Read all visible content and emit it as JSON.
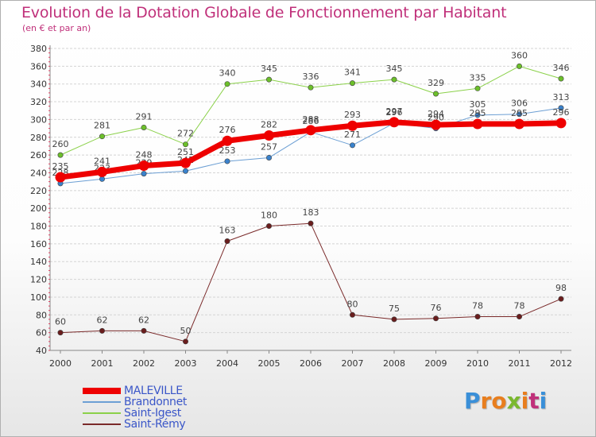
{
  "title": "Evolution de la Dotation Globale de Fonctionnement par Habitant",
  "subtitle": "(en € et par an)",
  "brand": {
    "letters": [
      "P",
      "r",
      "o",
      "x",
      "i",
      "t",
      "i"
    ],
    "colors": [
      "#3a8fd8",
      "#e87e1e",
      "#e87e1e",
      "#7ab82e",
      "#e87e1e",
      "#c0307a",
      "#3a8fd8"
    ]
  },
  "colors": {
    "title": "#c0307a",
    "axis_text": "#333333",
    "grid": "#d4d4d4",
    "legend_text": "#3a56c8"
  },
  "chart_data": {
    "type": "line",
    "title": "Evolution de la Dotation Globale de Fonctionnement par Habitant",
    "ylabel": "(en € et par an)",
    "xlabel": "",
    "x": [
      "2000",
      "2001",
      "2002",
      "2003",
      "2004",
      "2005",
      "2006",
      "2007",
      "2008",
      "2009",
      "2010",
      "2011",
      "2012"
    ],
    "ylim": [
      40,
      380
    ],
    "yticks": [
      40,
      60,
      80,
      100,
      120,
      140,
      160,
      180,
      200,
      220,
      240,
      260,
      280,
      300,
      320,
      340,
      360,
      380
    ],
    "grid": true,
    "legend_position": "bottom-left",
    "series": [
      {
        "name": "Saint-Igest",
        "color": "#8bd14a",
        "marker": "#6cc02a",
        "width": 1,
        "values": [
          260,
          281,
          291,
          272,
          340,
          345,
          336,
          341,
          345,
          329,
          335,
          360,
          346
        ]
      },
      {
        "name": "Brandonnet",
        "color": "#6c9fd4",
        "marker": "#3a82cc",
        "width": 1,
        "values": [
          228,
          233,
          239,
          242,
          253,
          257,
          286,
          271,
          296,
          290,
          305,
          306,
          313
        ]
      },
      {
        "name": "Saint-Rémy",
        "color": "#7a2a2a",
        "marker": "#6a1d1d",
        "width": 1,
        "values": [
          60,
          62,
          62,
          50,
          163,
          180,
          183,
          80,
          75,
          76,
          78,
          78,
          98
        ]
      },
      {
        "name": "MALEVILLE",
        "color": "#ee0000",
        "marker": "#ee0000",
        "width": 7,
        "values": [
          235,
          241,
          248,
          251,
          276,
          282,
          288,
          293,
          297,
          294,
          295,
          295,
          296
        ]
      }
    ],
    "legend_order": [
      "MALEVILLE",
      "Brandonnet",
      "Saint-Igest",
      "Saint-Rémy"
    ]
  }
}
